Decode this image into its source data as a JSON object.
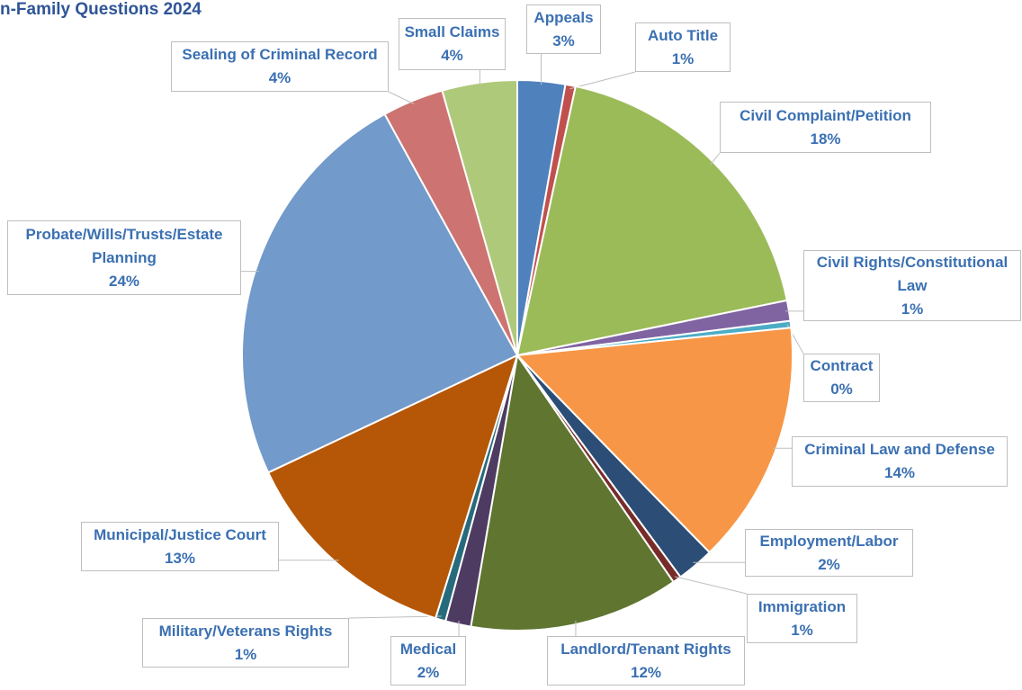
{
  "chart_data": {
    "type": "pie",
    "title": "n-Family Questions 2024",
    "categories": [
      "Appeals",
      "Auto Title",
      "Civil Complaint/Petition",
      "Civil Rights/Constitutional Law",
      "Contract",
      "Criminal Law and Defense",
      "Employment/Labor",
      "Immigration",
      "Landlord/Tenant Rights",
      "Medical",
      "Military/Veterans Rights",
      "Municipal/Justice Court",
      "Probate/Wills/Trusts/Estate Planning",
      "Sealing of Criminal Record",
      "Small Claims"
    ],
    "values": [
      2.8,
      0.6,
      18.4,
      1.2,
      0.4,
      14.3,
      2.2,
      0.5,
      12.3,
      1.5,
      0.6,
      13.2,
      24.0,
      3.6,
      4.4
    ],
    "value_labels": [
      "3%",
      "1%",
      "18%",
      "1%",
      "0%",
      "14%",
      "2%",
      "1%",
      "12%",
      "2%",
      "1%",
      "13%",
      "24%",
      "4%",
      "4%"
    ],
    "colors": [
      "#4f81bd",
      "#c0504d",
      "#9bbb59",
      "#8064a2",
      "#4bacc6",
      "#f79646",
      "#2c4d75",
      "#772c2a",
      "#5f7530",
      "#4d3b62",
      "#276a7c",
      "#b65708",
      "#729aca",
      "#cd7371",
      "#afc97a"
    ]
  }
}
